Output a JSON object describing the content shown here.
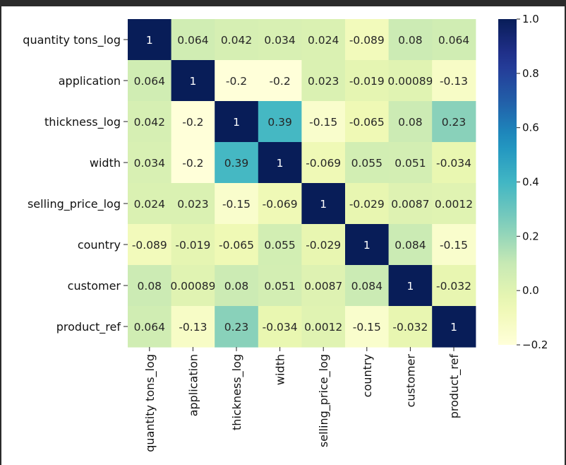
{
  "chart_data": {
    "type": "heatmap",
    "title": "",
    "xlabel": "",
    "ylabel": "",
    "row_labels": [
      "quantity tons_log",
      "application",
      "thickness_log",
      "width",
      "selling_price_log",
      "country",
      "customer",
      "product_ref"
    ],
    "col_labels": [
      "quantity tons_log",
      "application",
      "thickness_log",
      "width",
      "selling_price_log",
      "country",
      "customer",
      "product_ref"
    ],
    "values": [
      [
        1,
        0.064,
        0.042,
        0.034,
        0.024,
        -0.089,
        0.08,
        0.064
      ],
      [
        0.064,
        1,
        -0.2,
        -0.2,
        0.023,
        -0.019,
        0.00089,
        -0.13
      ],
      [
        0.042,
        -0.2,
        1,
        0.39,
        -0.15,
        -0.065,
        0.08,
        0.23
      ],
      [
        0.034,
        -0.2,
        0.39,
        1,
        -0.069,
        0.055,
        0.051,
        -0.034
      ],
      [
        0.024,
        0.023,
        -0.15,
        -0.069,
        1,
        -0.029,
        0.0087,
        0.0012
      ],
      [
        -0.089,
        -0.019,
        -0.065,
        0.055,
        -0.029,
        1,
        0.084,
        -0.15
      ],
      [
        0.08,
        0.00089,
        0.08,
        0.051,
        0.0087,
        0.084,
        1,
        -0.032
      ],
      [
        0.064,
        -0.13,
        0.23,
        -0.034,
        0.0012,
        -0.15,
        -0.032,
        1
      ]
    ],
    "annotations": [
      [
        "1",
        "0.064",
        "0.042",
        "0.034",
        "0.024",
        "-0.089",
        "0.08",
        "0.064"
      ],
      [
        "0.064",
        "1",
        "-0.2",
        "-0.2",
        "0.023",
        "-0.019",
        "0.00089",
        "-0.13"
      ],
      [
        "0.042",
        "-0.2",
        "1",
        "0.39",
        "-0.15",
        "-0.065",
        "0.08",
        "0.23"
      ],
      [
        "0.034",
        "-0.2",
        "0.39",
        "1",
        "-0.069",
        "0.055",
        "0.051",
        "-0.034"
      ],
      [
        "0.024",
        "0.023",
        "-0.15",
        "-0.069",
        "1",
        "-0.029",
        "0.0087",
        "0.0012"
      ],
      [
        "-0.089",
        "-0.019",
        "-0.065",
        "0.055",
        "-0.029",
        "1",
        "0.084",
        "-0.15"
      ],
      [
        "0.08",
        "0.00089",
        "0.08",
        "0.051",
        "0.0087",
        "0.084",
        "1",
        "-0.032"
      ],
      [
        "0.064",
        "-0.13",
        "0.23",
        "-0.034",
        "0.0012",
        "-0.15",
        "-0.032",
        "1"
      ]
    ],
    "colormap": "YlGnBu",
    "vmin": -0.2,
    "vmax": 1.0,
    "colorbar_ticks": [
      1.0,
      0.8,
      0.6,
      0.4,
      0.2,
      0.0,
      -0.2
    ],
    "colorbar_tick_labels": [
      "1.0",
      "0.8",
      "0.6",
      "0.4",
      "0.2",
      "0.0",
      "−0.2"
    ],
    "grid": false,
    "legend_position": "right"
  },
  "colors": {
    "background_border": "#2b2b2b",
    "panel": "#ffffff"
  }
}
